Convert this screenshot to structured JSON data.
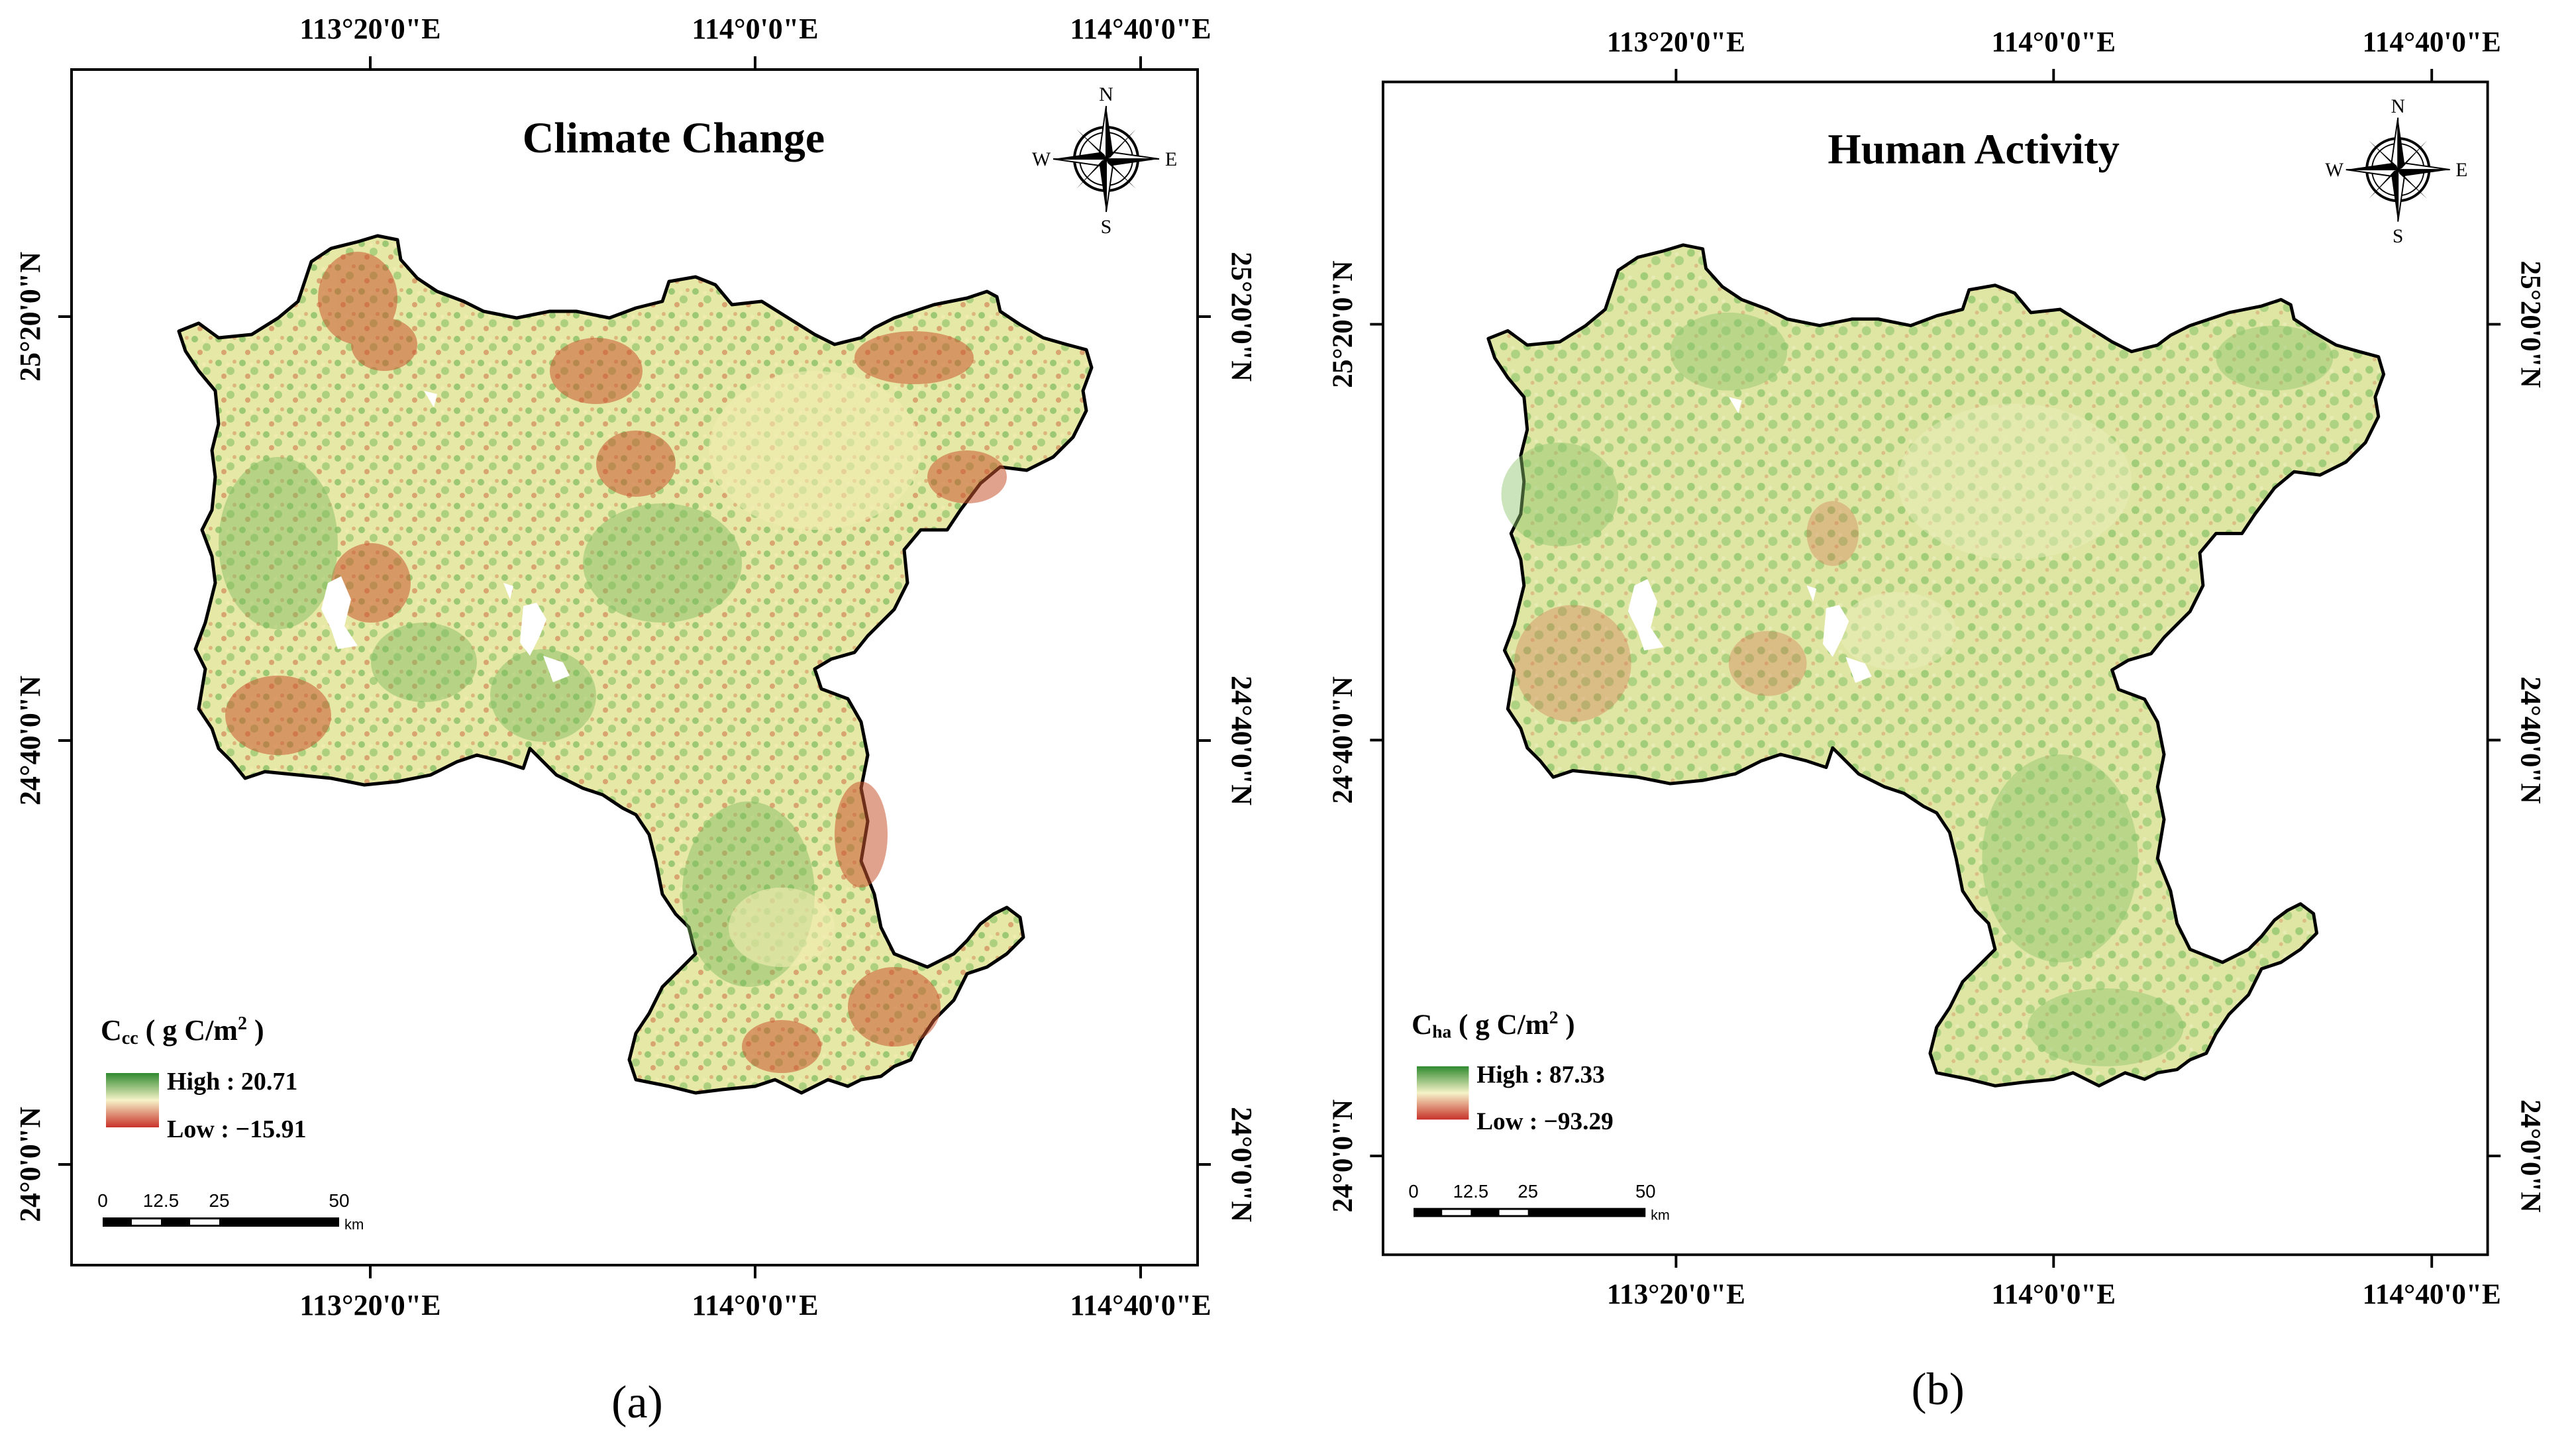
{
  "panels": [
    {
      "title": "Climate Change",
      "caption": "(a)",
      "legend": {
        "symbol": "C",
        "subscript": "cc",
        "unit_open": " ( g C/m",
        "unit_sup": "2",
        "unit_close": " )",
        "high": "High : 20.71",
        "low": "Low : −15.91",
        "colors": {
          "high": "#2f8a2f",
          "mid": "#f6f3c8",
          "low": "#c8322a"
        }
      },
      "palette": {
        "green": "#7dbb5e",
        "yellow": "#e6e8a6",
        "red": "#c8552f",
        "pale": "#f2ecb0"
      }
    },
    {
      "title": "Human Activity",
      "caption": "(b)",
      "legend": {
        "symbol": "C",
        "subscript": "ha",
        "unit_open": " ( g C/m",
        "unit_sup": "2",
        "unit_close": " )",
        "high": "High : 87.33",
        "low": "Low : −93.29",
        "colors": {
          "high": "#2f8a2f",
          "mid": "#f6f3c8",
          "low": "#c8322a"
        }
      },
      "palette": {
        "green": "#8cc46a",
        "yellow": "#dfe6a3",
        "red": "#d0714a",
        "pale": "#e9ecb8"
      }
    }
  ],
  "axes": {
    "lon_labels": [
      "113°20'0\"E",
      "114°0'0\"E",
      "114°40'0\"E"
    ],
    "lat_labels": [
      "25°20'0\"N",
      "24°40'0\"N",
      "24°0'0\"N"
    ]
  },
  "compass": {
    "n": "N",
    "s": "S",
    "e": "E",
    "w": "W"
  },
  "scalebar": {
    "ticks": [
      "0",
      "12.5",
      "25",
      "50"
    ],
    "unit": "km"
  },
  "icons": {
    "north_arrow": "compass-rose-icon"
  }
}
